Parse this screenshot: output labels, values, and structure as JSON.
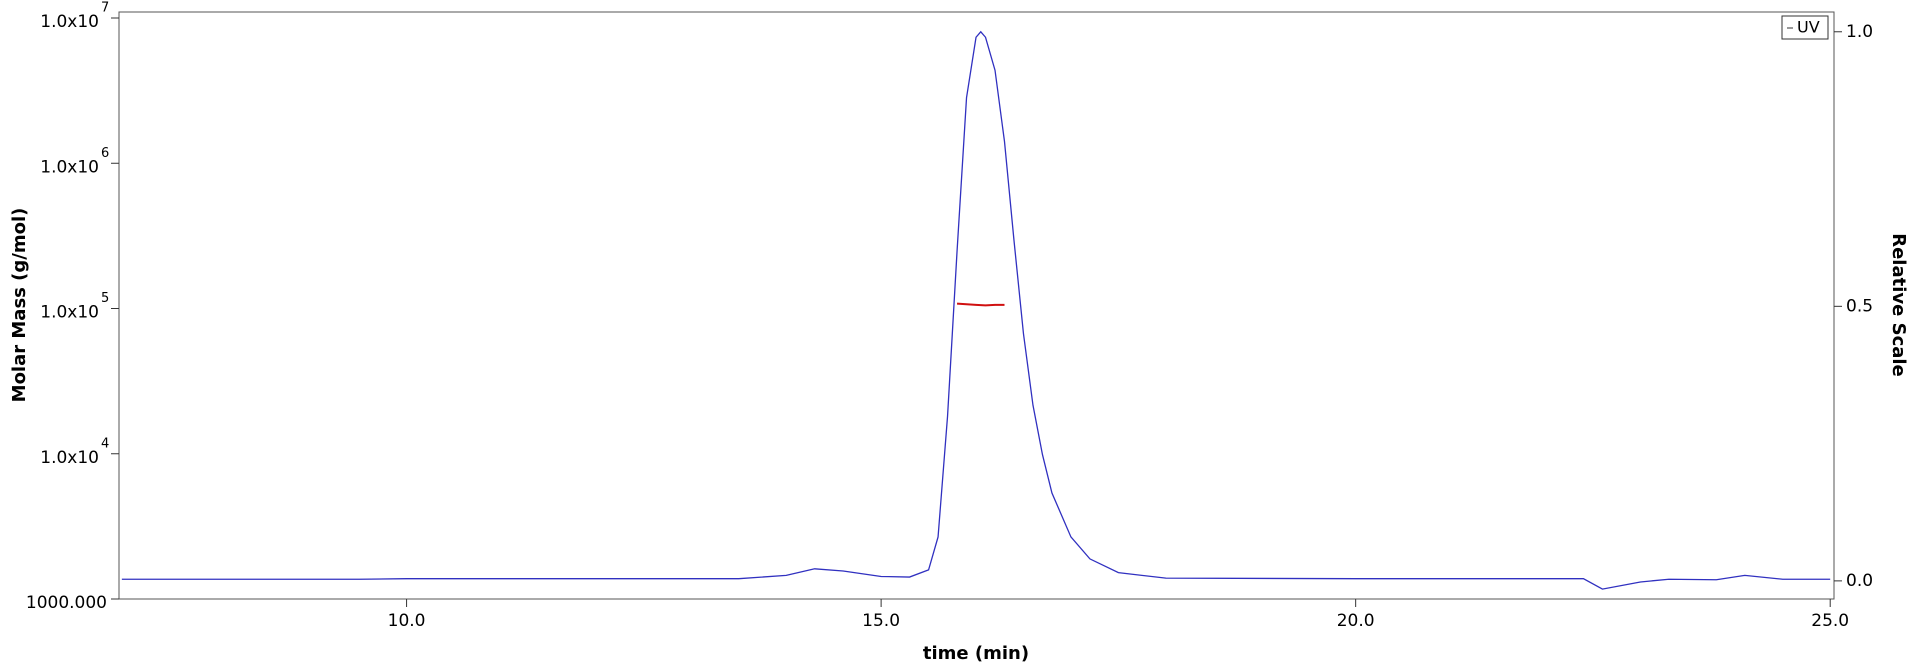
{
  "chart_data": {
    "type": "line",
    "xlabel": "time (min)",
    "ylabel": "Molar Mass (g/mol)",
    "y2label": "Relative Scale",
    "xlim": [
      6.97,
      25.04
    ],
    "ylim": [
      1000,
      11000000
    ],
    "y2lim": [
      -0.033,
      1.036
    ],
    "ylog": true,
    "xticks": [
      {
        "value": 10,
        "label": "10.0"
      },
      {
        "value": 15,
        "label": "15.0"
      },
      {
        "value": 20,
        "label": "20.0"
      },
      {
        "value": 25,
        "label": "25.0"
      }
    ],
    "yticks": [
      {
        "value": 1000,
        "label": "1000.000"
      },
      {
        "value": 10000,
        "label": "1.0x10",
        "sup": "4"
      },
      {
        "value": 100000,
        "label": "1.0x10",
        "sup": "5"
      },
      {
        "value": 1000000,
        "label": "1.0x10",
        "sup": "6"
      },
      {
        "value": 10000000,
        "label": "1.0x10",
        "sup": "7"
      }
    ],
    "y2ticks": [
      {
        "value": 0,
        "label": "0.0"
      },
      {
        "value": 0.5,
        "label": "0.5"
      },
      {
        "value": 1,
        "label": "1.0"
      }
    ],
    "legend": "upper right",
    "series": [
      {
        "name": "UV",
        "color": "#3030c0",
        "axis": "y2",
        "x": [
          7.0,
          9.5,
          10.0,
          12.5,
          13.5,
          14.0,
          14.3,
          14.6,
          15.0,
          15.3,
          15.5,
          15.6,
          15.7,
          15.75,
          15.8,
          15.9,
          16.0,
          16.05,
          16.1,
          16.2,
          16.3,
          16.4,
          16.5,
          16.6,
          16.7,
          16.8,
          17.0,
          17.2,
          17.5,
          18.0,
          20.0,
          22.4,
          22.6,
          23.0,
          23.3,
          23.8,
          24.1,
          24.5,
          25.0
        ],
        "values": [
          0.003,
          0.003,
          0.004,
          0.004,
          0.004,
          0.01,
          0.022,
          0.018,
          0.008,
          0.007,
          0.02,
          0.08,
          0.3,
          0.45,
          0.6,
          0.88,
          0.99,
          1.0,
          0.99,
          0.93,
          0.8,
          0.62,
          0.45,
          0.32,
          0.23,
          0.16,
          0.08,
          0.04,
          0.015,
          0.005,
          0.004,
          0.004,
          -0.015,
          -0.002,
          0.003,
          0.002,
          0.01,
          0.003,
          0.003
        ]
      },
      {
        "color": "#d01010",
        "x": [
          15.8,
          15.9,
          16.0,
          16.1,
          16.2,
          16.3
        ],
        "values": [
          108000,
          107000,
          106000,
          105000,
          106000,
          106000
        ]
      }
    ]
  }
}
